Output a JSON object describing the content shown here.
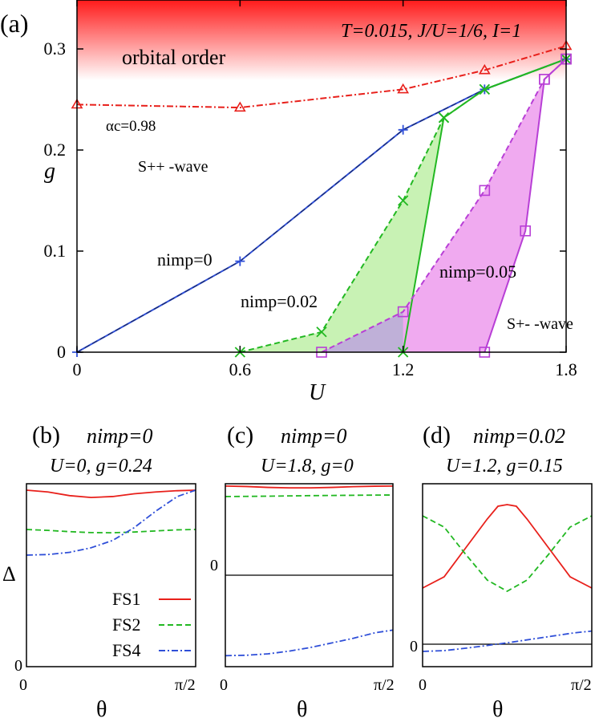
{
  "main": {
    "panel_label": "(a)",
    "params": "T=0.015, J/U=1/6, I=1",
    "region_orbital": "orbital order",
    "region_spp": "S++ -wave",
    "region_spm": "S+- -wave",
    "alpha_label": "αc=0.98",
    "xlabel": "U",
    "ylabel": "g",
    "xticks": [
      "0",
      "0.6",
      "1.2",
      "1.8"
    ],
    "yticks": [
      "0",
      "0.1",
      "0.2",
      "0.3"
    ],
    "label_n0": "nimp=0",
    "label_n002": "nimp=0.02",
    "label_n005": "nimp=0.05"
  },
  "colors": {
    "red": "#e8201b",
    "blue": "#2f4fd8",
    "green": "#22b822",
    "purple": "#b83fd6",
    "green_fill": "#c8f2b4",
    "purple_fill": "#f0aaf0",
    "overlap_fill": "#bfb0d8"
  },
  "chart_data": [
    {
      "type": "line",
      "title": "",
      "xlabel": "U",
      "ylabel": "g",
      "xlim": [
        0,
        1.8
      ],
      "ylim": [
        0,
        0.35
      ],
      "xticks": [
        0,
        0.6,
        1.2,
        1.8
      ],
      "yticks": [
        0,
        0.1,
        0.2,
        0.3
      ],
      "series": [
        {
          "name": "αc=0.98",
          "style": "dash-dot",
          "marker": "triangle",
          "color": "red",
          "x": [
            0,
            0.6,
            1.2,
            1.5,
            1.8
          ],
          "y": [
            0.245,
            0.242,
            0.26,
            0.279,
            0.303
          ]
        },
        {
          "name": "nimp=0",
          "style": "solid",
          "marker": "plus",
          "color": "blue",
          "x": [
            0,
            0.6,
            1.2,
            1.5,
            1.8
          ],
          "y": [
            0,
            0.09,
            0.22,
            0.26,
            0.29
          ]
        },
        {
          "name": "nimp=0.02",
          "style": "dashed",
          "marker": "x",
          "color": "green",
          "x": [
            0.6,
            0.9,
            1.2,
            1.35,
            1.5,
            1.8
          ],
          "y": [
            0,
            0.02,
            0.15,
            0.232,
            0.26,
            0.29
          ]
        },
        {
          "name": "nimp=0.02",
          "style": "solid",
          "marker": "x",
          "color": "green",
          "x": [
            1.2,
            1.35,
            1.5,
            1.8
          ],
          "y": [
            0,
            0.232,
            0.26,
            0.29
          ]
        },
        {
          "name": "nimp=0.05",
          "style": "dashed",
          "marker": "square",
          "color": "purple",
          "x": [
            0.9,
            1.2,
            1.5,
            1.72,
            1.8
          ],
          "y": [
            0,
            0.04,
            0.16,
            0.27,
            0.29
          ]
        },
        {
          "name": "nimp=0.05",
          "style": "solid",
          "marker": "square",
          "color": "purple",
          "x": [
            1.5,
            1.65,
            1.72,
            1.8
          ],
          "y": [
            0,
            0.12,
            0.27,
            0.29
          ]
        }
      ]
    },
    {
      "type": "line",
      "title": "nimp=0  U=0, g=0.24",
      "panel_label": "(b)",
      "xlabel": "θ",
      "ylabel": "Δ",
      "xticks": [
        "0",
        "π/2"
      ],
      "yticks": [
        "0"
      ],
      "xlim": [
        0,
        1.5708
      ],
      "ylim": [
        0,
        1.0
      ],
      "series": [
        {
          "name": "FS1",
          "style": "solid",
          "color": "red",
          "x": [
            0,
            0.2,
            0.4,
            0.6,
            0.8,
            1.0,
            1.2,
            1.4,
            1.5708
          ],
          "y": [
            0.965,
            0.955,
            0.935,
            0.925,
            0.93,
            0.945,
            0.955,
            0.962,
            0.965
          ]
        },
        {
          "name": "FS2",
          "style": "dashed",
          "color": "green",
          "x": [
            0,
            0.2,
            0.4,
            0.6,
            0.8,
            1.0,
            1.2,
            1.4,
            1.5708
          ],
          "y": [
            0.75,
            0.745,
            0.738,
            0.733,
            0.732,
            0.736,
            0.742,
            0.748,
            0.75
          ]
        },
        {
          "name": "FS4",
          "style": "dash-dot",
          "color": "blue",
          "x": [
            0,
            0.2,
            0.4,
            0.6,
            0.8,
            1.0,
            1.2,
            1.4,
            1.5708
          ],
          "y": [
            0.61,
            0.613,
            0.625,
            0.65,
            0.69,
            0.76,
            0.85,
            0.93,
            0.965
          ]
        }
      ]
    },
    {
      "type": "line",
      "title": "nimp=0  U=1.8, g=0",
      "panel_label": "(c)",
      "xlabel": "θ",
      "ylabel": "",
      "xticks": [
        "0",
        "π/2"
      ],
      "yticks": [
        "0"
      ],
      "xlim": [
        0,
        1.5708
      ],
      "ylim": [
        -1.0,
        1.0
      ],
      "series": [
        {
          "name": "FS1",
          "style": "solid",
          "color": "red",
          "x": [
            0,
            0.2,
            0.4,
            0.6,
            0.8,
            1.0,
            1.2,
            1.4,
            1.5708
          ],
          "y": [
            0.975,
            0.97,
            0.96,
            0.955,
            0.955,
            0.96,
            0.968,
            0.973,
            0.975
          ]
        },
        {
          "name": "FS2",
          "style": "dashed",
          "color": "green",
          "x": [
            0,
            0.2,
            0.4,
            0.6,
            0.8,
            1.0,
            1.2,
            1.4,
            1.5708
          ],
          "y": [
            0.86,
            0.862,
            0.864,
            0.867,
            0.87,
            0.872,
            0.874,
            0.876,
            0.877
          ]
        },
        {
          "name": "FS4",
          "style": "dash-dot",
          "color": "blue",
          "x": [
            0,
            0.2,
            0.4,
            0.6,
            0.8,
            1.0,
            1.2,
            1.4,
            1.5708
          ],
          "y": [
            -0.88,
            -0.875,
            -0.86,
            -0.83,
            -0.79,
            -0.74,
            -0.69,
            -0.63,
            -0.6
          ]
        }
      ]
    },
    {
      "type": "line",
      "title": "nimp=0.02  U=1.2, g=0.15",
      "panel_label": "(d)",
      "xlabel": "θ",
      "ylabel": "",
      "xticks": [
        "0",
        "π/2"
      ],
      "yticks": [
        "0"
      ],
      "xlim": [
        0,
        1.5708
      ],
      "ylim": [
        -0.14,
        1.0
      ],
      "series": [
        {
          "name": "FS1",
          "style": "solid",
          "color": "red",
          "x": [
            0,
            0.2,
            0.4,
            0.6,
            0.7,
            0.785,
            0.87,
            0.97,
            1.17,
            1.37,
            1.5708
          ],
          "y": [
            0.35,
            0.42,
            0.6,
            0.78,
            0.86,
            0.87,
            0.86,
            0.78,
            0.6,
            0.42,
            0.35
          ]
        },
        {
          "name": "FS2",
          "style": "dashed",
          "color": "green",
          "x": [
            0,
            0.2,
            0.4,
            0.6,
            0.785,
            0.97,
            1.17,
            1.37,
            1.5708
          ],
          "y": [
            0.8,
            0.73,
            0.56,
            0.4,
            0.33,
            0.4,
            0.56,
            0.73,
            0.8
          ]
        },
        {
          "name": "FS4",
          "style": "dash-dot",
          "color": "blue",
          "x": [
            0,
            0.2,
            0.4,
            0.6,
            0.8,
            1.0,
            1.2,
            1.4,
            1.5708
          ],
          "y": [
            -0.045,
            -0.04,
            -0.025,
            -0.008,
            0.01,
            0.03,
            0.05,
            0.07,
            0.082
          ]
        }
      ]
    }
  ],
  "panel_b": {
    "label": "(b)",
    "n": "nimp=0",
    "params": "U=0, g=0.24",
    "ylabel": "Δ",
    "xlabel": "θ",
    "x0": "0",
    "x1": "π/2",
    "y0": "0"
  },
  "panel_c": {
    "label": "(c)",
    "n": "nimp=0",
    "params": "U=1.8, g=0",
    "xlabel": "θ",
    "x0": "0",
    "x1": "π/2",
    "y0": "0"
  },
  "panel_d": {
    "label": "(d)",
    "n": "nimp=0.02",
    "params": "U=1.2, g=0.15",
    "xlabel": "θ",
    "x0": "0",
    "x1": "π/2",
    "y0": "0"
  },
  "legend": [
    {
      "name": "FS1",
      "style": "solid",
      "color": "red"
    },
    {
      "name": "FS2",
      "style": "dashed",
      "color": "green"
    },
    {
      "name": "FS4",
      "style": "dash-dot",
      "color": "blue"
    }
  ]
}
